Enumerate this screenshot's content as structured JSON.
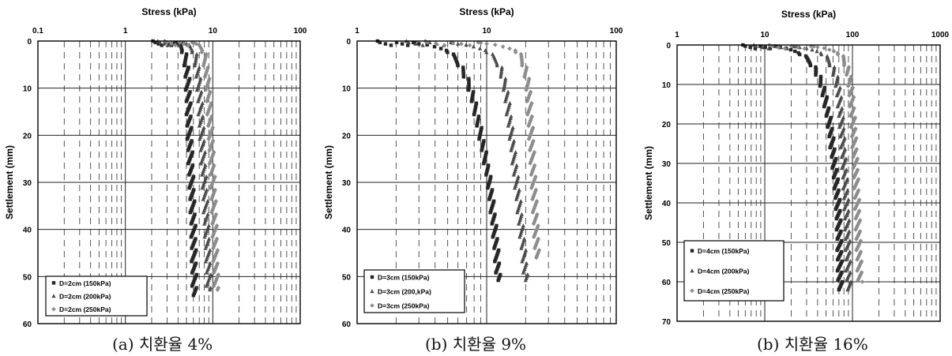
{
  "figure": {
    "captions": [
      "(a) 치환율 4%",
      "(b) 치환율 9%",
      "(b) 치환율 16%"
    ]
  },
  "chart_data": [
    {
      "type": "scatter",
      "title": "Stress (kPa)",
      "xlabel": "Stress (kPa)",
      "ylabel": "Settlement (mm)",
      "xscale": "log",
      "xlim": [
        0.1,
        100
      ],
      "ylim": [
        0,
        60
      ],
      "xticks": [
        "0.1",
        "1",
        "10",
        "100"
      ],
      "yticks": [
        "0",
        "10",
        "20",
        "30",
        "40",
        "50",
        "60"
      ],
      "x_axis_position": "top",
      "y_inverted": true,
      "grid": "dashed-minor",
      "legend_position": "bottom-left",
      "series": [
        {
          "name": "D=2cm  (150kPa)",
          "marker": "square",
          "color": "#262626",
          "curve": [
            [
              2.2,
              0
            ],
            [
              4.0,
              0.5
            ],
            [
              4.6,
              2
            ],
            [
              5.0,
              5
            ],
            [
              5.2,
              10
            ],
            [
              5.4,
              20
            ],
            [
              5.7,
              30
            ],
            [
              6.0,
              40
            ],
            [
              6.1,
              48
            ],
            [
              6.2,
              54
            ]
          ]
        },
        {
          "name": "D=2cm  (200kPa)",
          "marker": "triangle",
          "color": "#4a4a4a",
          "curve": [
            [
              2.5,
              0
            ],
            [
              5.0,
              0.5
            ],
            [
              6.0,
              2
            ],
            [
              6.6,
              5
            ],
            [
              7.0,
              10
            ],
            [
              7.5,
              20
            ],
            [
              8.0,
              30
            ],
            [
              8.5,
              40
            ],
            [
              8.9,
              48
            ],
            [
              9.0,
              53
            ]
          ]
        },
        {
          "name": "D=2cm  (250kPa)",
          "marker": "diamond",
          "color": "#8c8c8c",
          "curve": [
            [
              3.0,
              0
            ],
            [
              6.5,
              0.5
            ],
            [
              7.8,
              2
            ],
            [
              8.3,
              5
            ],
            [
              8.8,
              10
            ],
            [
              9.5,
              20
            ],
            [
              10.0,
              30
            ],
            [
              10.5,
              40
            ],
            [
              10.8,
              48
            ],
            [
              11.0,
              53
            ]
          ]
        }
      ]
    },
    {
      "type": "scatter",
      "title": "Stress (kPa)",
      "xlabel": "Stress (kPa)",
      "ylabel": "Settlement (mm)",
      "xscale": "log",
      "xlim": [
        1,
        100
      ],
      "ylim": [
        0,
        60
      ],
      "xticks": [
        "1",
        "10",
        "100"
      ],
      "yticks": [
        "0",
        "10",
        "20",
        "30",
        "40",
        "50",
        "60"
      ],
      "x_axis_position": "top",
      "y_inverted": true,
      "grid": "dashed-minor",
      "legend_position": "bottom-left",
      "series": [
        {
          "name": "D=3cm  (150kPa)",
          "marker": "square",
          "color": "#262626",
          "curve": [
            [
              1.5,
              0
            ],
            [
              3.0,
              0.5
            ],
            [
              5.0,
              2
            ],
            [
              6.2,
              5
            ],
            [
              7.5,
              10
            ],
            [
              9.0,
              20
            ],
            [
              10.5,
              30
            ],
            [
              11.5,
              40
            ],
            [
              12.0,
              46
            ],
            [
              12.3,
              51
            ]
          ]
        },
        {
          "name": "D=3cm  (200,kPa)",
          "marker": "triangle",
          "color": "#4a4a4a",
          "curve": [
            [
              2.5,
              0
            ],
            [
              6.0,
              0.5
            ],
            [
              10.0,
              2
            ],
            [
              12.5,
              5
            ],
            [
              14.0,
              10
            ],
            [
              15.5,
              20
            ],
            [
              17.0,
              30
            ],
            [
              18.5,
              40
            ],
            [
              19.5,
              46
            ],
            [
              20.0,
              51
            ]
          ]
        },
        {
          "name": "D=3cm  (250kPa)",
          "marker": "diamond",
          "color": "#8c8c8c",
          "curve": [
            [
              3.5,
              0
            ],
            [
              10.0,
              0.5
            ],
            [
              17.0,
              2
            ],
            [
              19.5,
              5
            ],
            [
              21.0,
              10
            ],
            [
              22.0,
              20
            ],
            [
              23.0,
              30
            ],
            [
              24.0,
              40
            ],
            [
              24.5,
              46
            ]
          ]
        }
      ]
    },
    {
      "type": "scatter",
      "title": "Stress (kPa)",
      "xlabel": "Stress (kPa)",
      "ylabel": "Settlement (mm)",
      "xscale": "log",
      "xlim": [
        1,
        1000
      ],
      "ylim": [
        0,
        70
      ],
      "xticks": [
        "1",
        "10",
        "100",
        "1000"
      ],
      "yticks": [
        "0",
        "10",
        "20",
        "30",
        "40",
        "50",
        "60",
        "70"
      ],
      "x_axis_position": "top",
      "y_inverted": true,
      "grid": "dashed-minor",
      "legend_position": "bottom-left",
      "series": [
        {
          "name": "D=4cm  (150kPa)",
          "marker": "square",
          "color": "#262626",
          "curve": [
            [
              6.0,
              0
            ],
            [
              15.0,
              0.5
            ],
            [
              25.0,
              2
            ],
            [
              35.0,
              5
            ],
            [
              45.0,
              10
            ],
            [
              55.0,
              20
            ],
            [
              62.0,
              30
            ],
            [
              68.0,
              40
            ],
            [
              71.0,
              50
            ],
            [
              72.0,
              60
            ],
            [
              73.0,
              62
            ]
          ]
        },
        {
          "name": "D=4cm  (200kPa)",
          "marker": "triangle",
          "color": "#4a4a4a",
          "curve": [
            [
              8.0,
              0
            ],
            [
              25.0,
              0.5
            ],
            [
              45.0,
              2
            ],
            [
              58.0,
              5
            ],
            [
              68.0,
              10
            ],
            [
              75.0,
              20
            ],
            [
              80.0,
              30
            ],
            [
              85.0,
              40
            ],
            [
              88.0,
              50
            ],
            [
              90.0,
              60
            ],
            [
              92.0,
              62
            ]
          ]
        },
        {
          "name": "D=4cm  (250kPa)",
          "marker": "diamond",
          "color": "#8c8c8c",
          "curve": [
            [
              12.0,
              0
            ],
            [
              40.0,
              0.5
            ],
            [
              70.0,
              2
            ],
            [
              85.0,
              5
            ],
            [
              95.0,
              10
            ],
            [
              102.0,
              20
            ],
            [
              108.0,
              30
            ],
            [
              113.0,
              40
            ],
            [
              117.0,
              50
            ],
            [
              120.0,
              56
            ],
            [
              122.0,
              60
            ]
          ]
        }
      ]
    }
  ]
}
